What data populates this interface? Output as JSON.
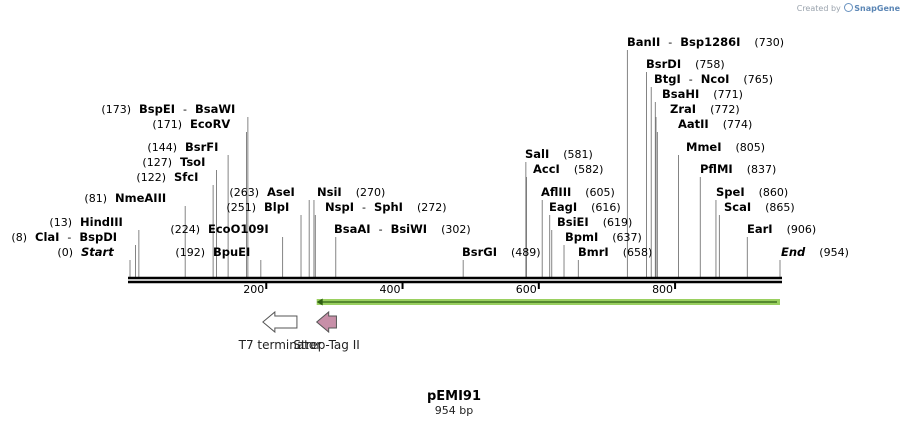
{
  "credit": {
    "prefix": "Created by",
    "brand": "SnapGene"
  },
  "plasmid": {
    "name": "pEMI91",
    "length_label": "954 bp",
    "length": 954
  },
  "ticks": [
    {
      "pos": 200,
      "label": "200"
    },
    {
      "pos": 400,
      "label": "400"
    },
    {
      "pos": 600,
      "label": "600"
    },
    {
      "pos": 800,
      "label": "800"
    }
  ],
  "sites": [
    {
      "id": "start",
      "names": [
        "Start"
      ],
      "pos_label": "(0)",
      "pos": 0,
      "italic": true,
      "side": "left"
    },
    {
      "id": "clai",
      "names": [
        "ClaI",
        "BspDI"
      ],
      "pos_label": "(8)",
      "pos": 8,
      "side": "left"
    },
    {
      "id": "hindiii",
      "names": [
        "HindIII"
      ],
      "pos_label": "(13)",
      "pos": 13,
      "side": "left"
    },
    {
      "id": "nmeaiii",
      "names": [
        "NmeAIII"
      ],
      "pos_label": "(81)",
      "pos": 81,
      "side": "left"
    },
    {
      "id": "sfci",
      "names": [
        "SfcI"
      ],
      "pos_label": "(122)",
      "pos": 122,
      "side": "left"
    },
    {
      "id": "tsoi",
      "names": [
        "TsoI"
      ],
      "pos_label": "(127)",
      "pos": 127,
      "side": "left"
    },
    {
      "id": "bsrfi",
      "names": [
        "BsrFI"
      ],
      "pos_label": "(144)",
      "pos": 144,
      "side": "left"
    },
    {
      "id": "ecorv",
      "names": [
        "EcoRV"
      ],
      "pos_label": "(171)",
      "pos": 171,
      "side": "left"
    },
    {
      "id": "bspei",
      "names": [
        "BspEI",
        "BsaWI"
      ],
      "pos_label": "(173)",
      "pos": 173,
      "side": "left"
    },
    {
      "id": "bpuei",
      "names": [
        "BpuEI"
      ],
      "pos_label": "(192)",
      "pos": 192,
      "side": "left"
    },
    {
      "id": "ecoo109i",
      "names": [
        "EcoO109I"
      ],
      "pos_label": "(224)",
      "pos": 224,
      "side": "left"
    },
    {
      "id": "blpi",
      "names": [
        "BlpI"
      ],
      "pos_label": "(251)",
      "pos": 251,
      "side": "left"
    },
    {
      "id": "asei",
      "names": [
        "AseI"
      ],
      "pos_label": "(263)",
      "pos": 263,
      "side": "left"
    },
    {
      "id": "nsii",
      "names": [
        "NsiI"
      ],
      "pos_label": "(270)",
      "pos": 270,
      "side": "right"
    },
    {
      "id": "nspi",
      "names": [
        "NspI",
        "SphI"
      ],
      "pos_label": "(272)",
      "pos": 272,
      "side": "right"
    },
    {
      "id": "bsaai",
      "names": [
        "BsaAI",
        "BsiWI"
      ],
      "pos_label": "(302)",
      "pos": 302,
      "side": "right"
    },
    {
      "id": "bsrgi",
      "names": [
        "BsrGI"
      ],
      "pos_label": "(489)",
      "pos": 489,
      "side": "right"
    },
    {
      "id": "sali",
      "names": [
        "SalI"
      ],
      "pos_label": "(581)",
      "pos": 581,
      "side": "right"
    },
    {
      "id": "acci",
      "names": [
        "AccI"
      ],
      "pos_label": "(582)",
      "pos": 582,
      "side": "right"
    },
    {
      "id": "afliii",
      "names": [
        "AflIII"
      ],
      "pos_label": "(605)",
      "pos": 605,
      "side": "right"
    },
    {
      "id": "eagi",
      "names": [
        "EagI"
      ],
      "pos_label": "(616)",
      "pos": 616,
      "side": "right"
    },
    {
      "id": "bsiei",
      "names": [
        "BsiEI"
      ],
      "pos_label": "(619)",
      "pos": 619,
      "side": "right"
    },
    {
      "id": "bpmi",
      "names": [
        "BpmI"
      ],
      "pos_label": "(637)",
      "pos": 637,
      "side": "right"
    },
    {
      "id": "bmri",
      "names": [
        "BmrI"
      ],
      "pos_label": "(658)",
      "pos": 658,
      "side": "right"
    },
    {
      "id": "banii",
      "names": [
        "BanII",
        "Bsp1286I"
      ],
      "pos_label": "(730)",
      "pos": 730,
      "side": "right"
    },
    {
      "id": "bsrdi",
      "names": [
        "BsrDI"
      ],
      "pos_label": "(758)",
      "pos": 758,
      "side": "right"
    },
    {
      "id": "btgi",
      "names": [
        "BtgI",
        "NcoI"
      ],
      "pos_label": "(765)",
      "pos": 765,
      "side": "right"
    },
    {
      "id": "bsahi",
      "names": [
        "BsaHI"
      ],
      "pos_label": "(771)",
      "pos": 771,
      "side": "right"
    },
    {
      "id": "zrai",
      "names": [
        "ZraI"
      ],
      "pos_label": "(772)",
      "pos": 772,
      "side": "right"
    },
    {
      "id": "aatii",
      "names": [
        "AatII"
      ],
      "pos_label": "(774)",
      "pos": 774,
      "side": "right"
    },
    {
      "id": "mmei",
      "names": [
        "MmeI"
      ],
      "pos_label": "(805)",
      "pos": 805,
      "side": "right"
    },
    {
      "id": "pflmi",
      "names": [
        "PflMI"
      ],
      "pos_label": "(837)",
      "pos": 837,
      "side": "right"
    },
    {
      "id": "spei",
      "names": [
        "SpeI"
      ],
      "pos_label": "(860)",
      "pos": 860,
      "side": "right"
    },
    {
      "id": "scai",
      "names": [
        "ScaI"
      ],
      "pos_label": "(865)",
      "pos": 865,
      "side": "right"
    },
    {
      "id": "eari",
      "names": [
        "EarI"
      ],
      "pos_label": "(906)",
      "pos": 906,
      "side": "right"
    },
    {
      "id": "end",
      "names": [
        "End"
      ],
      "pos_label": "(954)",
      "pos": 954,
      "italic": true,
      "side": "right"
    }
  ],
  "features": [
    {
      "id": "t7-terminator",
      "label": "T7 terminator",
      "start": 195,
      "end": 245,
      "direction": "reverse",
      "color": "#ffffff",
      "stroke": "#555555"
    },
    {
      "id": "strep-tag",
      "label": "Strep-Tag II",
      "start": 274,
      "end": 303,
      "direction": "reverse",
      "color": "#c78fa8",
      "stroke": "#555555"
    }
  ],
  "orf": {
    "start": 274,
    "end": 954,
    "direction": "reverse",
    "color": "#9ad060",
    "arrow_color": "#2f5f12"
  }
}
